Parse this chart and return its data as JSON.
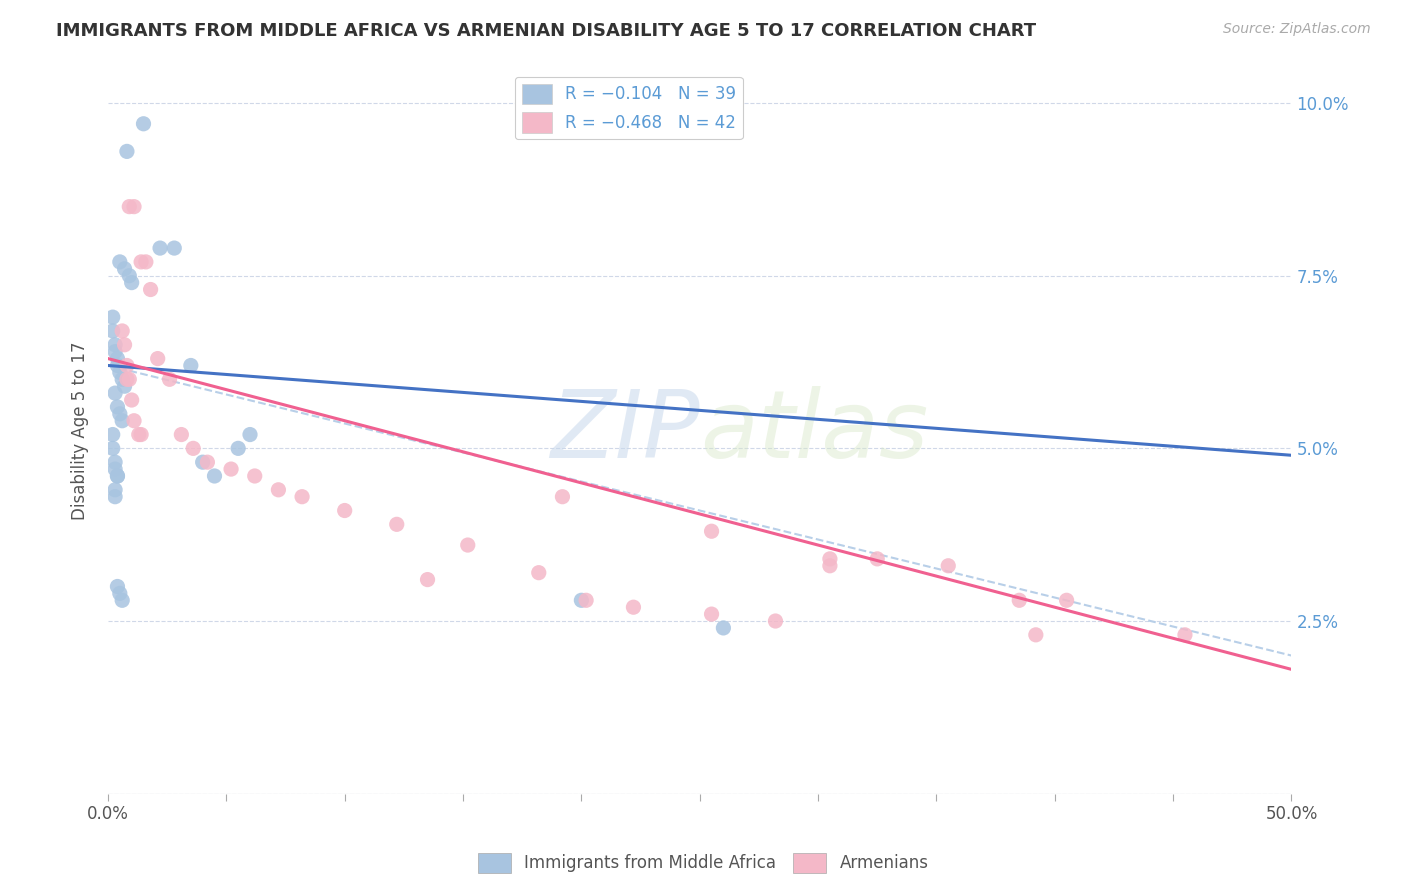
{
  "title": "IMMIGRANTS FROM MIDDLE AFRICA VS ARMENIAN DISABILITY AGE 5 TO 17 CORRELATION CHART",
  "source": "Source: ZipAtlas.com",
  "ylabel": "Disability Age 5 to 17",
  "legend_entry1": "R = −0.104   N = 39",
  "legend_entry2": "R = −0.468   N = 42",
  "legend_label1": "Immigrants from Middle Africa",
  "legend_label2": "Armenians",
  "xlim": [
    0.0,
    0.5
  ],
  "ylim": [
    0.0,
    0.105
  ],
  "yticks": [
    0.0,
    0.025,
    0.05,
    0.075,
    0.1
  ],
  "ytick_labels": [
    "",
    "2.5%",
    "5.0%",
    "7.5%",
    "10.0%"
  ],
  "color_blue": "#a8c4e0",
  "color_pink": "#f4b8c8",
  "trendline_blue": "#4472c4",
  "trendline_pink": "#f06090",
  "trendline_dashed": "#b8cfe8",
  "watermark_zip": "ZIP",
  "watermark_atlas": "atlas",
  "blue_scatter_x": [
    0.008,
    0.015,
    0.022,
    0.028,
    0.005,
    0.007,
    0.009,
    0.01,
    0.002,
    0.002,
    0.003,
    0.003,
    0.004,
    0.004,
    0.005,
    0.006,
    0.007,
    0.003,
    0.004,
    0.005,
    0.006,
    0.002,
    0.002,
    0.003,
    0.003,
    0.004,
    0.004,
    0.003,
    0.003,
    0.004,
    0.005,
    0.006,
    0.2,
    0.26,
    0.035,
    0.06,
    0.055,
    0.04,
    0.045
  ],
  "blue_scatter_y": [
    0.093,
    0.097,
    0.079,
    0.079,
    0.077,
    0.076,
    0.075,
    0.074,
    0.069,
    0.067,
    0.065,
    0.064,
    0.063,
    0.062,
    0.061,
    0.06,
    0.059,
    0.058,
    0.056,
    0.055,
    0.054,
    0.052,
    0.05,
    0.048,
    0.047,
    0.046,
    0.046,
    0.044,
    0.043,
    0.03,
    0.029,
    0.028,
    0.028,
    0.024,
    0.062,
    0.052,
    0.05,
    0.048,
    0.046
  ],
  "pink_scatter_x": [
    0.009,
    0.011,
    0.014,
    0.016,
    0.018,
    0.006,
    0.007,
    0.008,
    0.008,
    0.009,
    0.01,
    0.011,
    0.013,
    0.014,
    0.021,
    0.026,
    0.031,
    0.036,
    0.042,
    0.052,
    0.062,
    0.072,
    0.082,
    0.1,
    0.122,
    0.152,
    0.182,
    0.202,
    0.222,
    0.255,
    0.282,
    0.305,
    0.325,
    0.385,
    0.405,
    0.455,
    0.255,
    0.305,
    0.355,
    0.192,
    0.392,
    0.135
  ],
  "pink_scatter_y": [
    0.085,
    0.085,
    0.077,
    0.077,
    0.073,
    0.067,
    0.065,
    0.062,
    0.06,
    0.06,
    0.057,
    0.054,
    0.052,
    0.052,
    0.063,
    0.06,
    0.052,
    0.05,
    0.048,
    0.047,
    0.046,
    0.044,
    0.043,
    0.041,
    0.039,
    0.036,
    0.032,
    0.028,
    0.027,
    0.026,
    0.025,
    0.033,
    0.034,
    0.028,
    0.028,
    0.023,
    0.038,
    0.034,
    0.033,
    0.043,
    0.023,
    0.031
  ],
  "blue_trend_x": [
    0.0,
    0.5
  ],
  "blue_trend_y": [
    0.062,
    0.049
  ],
  "pink_trend_x": [
    0.0,
    0.5
  ],
  "pink_trend_y": [
    0.063,
    0.018
  ],
  "dashed_trend_x": [
    0.0,
    0.5
  ],
  "dashed_trend_y": [
    0.062,
    0.02
  ]
}
